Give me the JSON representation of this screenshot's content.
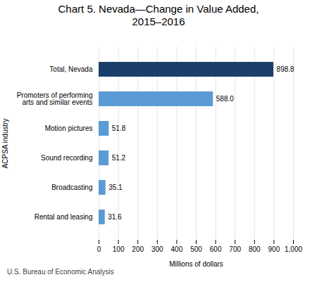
{
  "chart_data": {
    "type": "bar",
    "orientation": "horizontal",
    "title": "Chart 5. Nevada—Change in Value Added,\n2015–2016",
    "xlabel": "Millions of dollars",
    "ylabel": "ACPSA industry",
    "caption": "U.S. Bureau of Economic Analysis",
    "categories": [
      "Rental and leasing",
      "Broadcasting",
      "Sound recording",
      "Motion pictures",
      "Promoters of performing\narts and similar events",
      "Total, Nevada"
    ],
    "values": [
      31.6,
      35.1,
      51.2,
      51.8,
      588.0,
      898.8
    ],
    "value_labels": [
      "31.6",
      "35.1",
      "51.2",
      "51.8",
      "588.0",
      "898.8"
    ],
    "data_labels": true,
    "colors": [
      "#5B9BD5",
      "#5B9BD5",
      "#5B9BD5",
      "#5B9BD5",
      "#5B9BD5",
      "#1B3F6B"
    ],
    "xlim": [
      0,
      1000
    ],
    "xticks": [
      0,
      100,
      200,
      300,
      400,
      500,
      600,
      700,
      800,
      900,
      {
        "value": 1000,
        "label": "1,000"
      }
    ],
    "grid": true
  }
}
